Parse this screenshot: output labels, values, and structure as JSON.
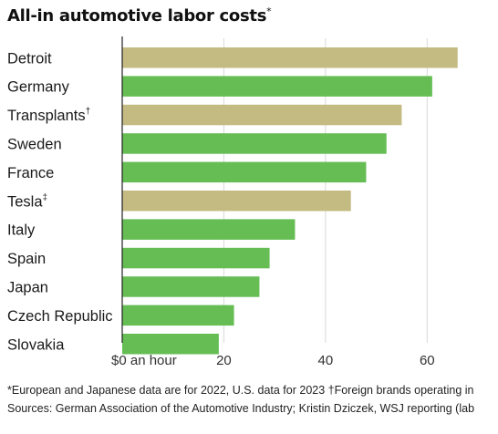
{
  "title": "All-in automotive labor costs",
  "title_mark": "*",
  "footnotes": [
    "*European and Japanese data are for 2022, U.S. data for 2023   †Foreign brands operating in",
    "Sources: German Association of the Automotive Industry; Kristin Dziczek, WSJ reporting (lab"
  ],
  "chart_data": {
    "type": "bar",
    "orientation": "horizontal",
    "categories": [
      "Detroit",
      "Germany",
      "Transplants",
      "Sweden",
      "France",
      "Tesla",
      "Italy",
      "Spain",
      "Japan",
      "Czech Republic",
      "Slovakia"
    ],
    "category_marks": [
      "",
      "",
      "†",
      "",
      "",
      "‡",
      "",
      "",
      "",
      "",
      ""
    ],
    "values": [
      66,
      61,
      55,
      52,
      48,
      45,
      34,
      29,
      27,
      22,
      19
    ],
    "groups": [
      "US",
      "Europe",
      "US",
      "Europe",
      "Europe",
      "US",
      "Europe",
      "Europe",
      "Japan",
      "Europe",
      "Europe"
    ],
    "colors": {
      "US": "#c4bb82",
      "Europe": "#65bd54",
      "Japan": "#65bd54"
    },
    "xticks": [
      0,
      20,
      40,
      60
    ],
    "xtick_labels": [
      "$0 an hour",
      "20",
      "40",
      "60"
    ],
    "xlim": [
      0,
      70
    ],
    "grid": "vertical",
    "title": "All-in automotive labor costs",
    "xlabel": "",
    "ylabel": ""
  }
}
